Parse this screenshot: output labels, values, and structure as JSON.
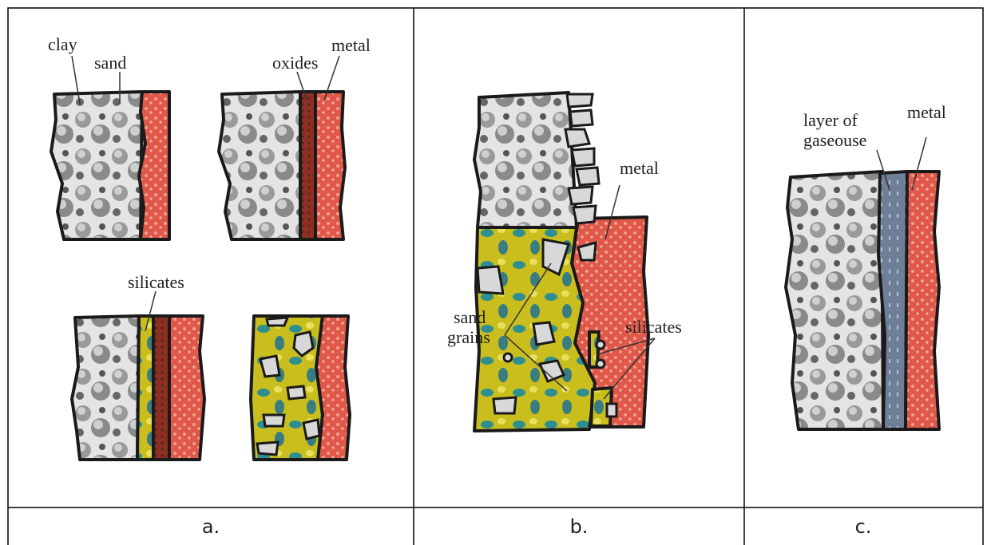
{
  "panels": [
    {
      "caption": "a.",
      "labels": [
        "clay",
        "sand",
        "oxides",
        "metal",
        "silicates"
      ]
    },
    {
      "caption": "b.",
      "labels": [
        "metal",
        [
          "sand",
          "grains"
        ],
        "silicates"
      ]
    },
    {
      "caption": "c.",
      "labels": [
        [
          "layer of",
          "gaseouse"
        ],
        "metal"
      ]
    }
  ]
}
